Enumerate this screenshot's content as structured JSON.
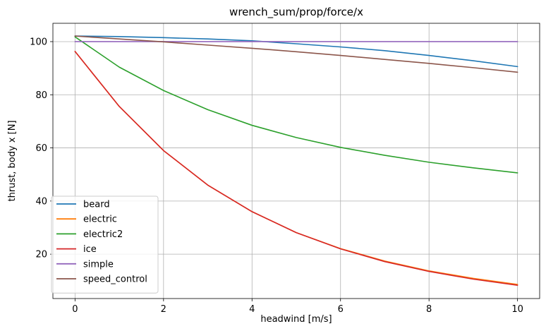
{
  "chart_data": {
    "type": "line",
    "title": "wrench_sum/prop/force/x",
    "xlabel": "headwind [m/s]",
    "ylabel": "thrust, body x [N]",
    "x": [
      0,
      1,
      2,
      3,
      4,
      5,
      6,
      7,
      8,
      9,
      10
    ],
    "xlim": [
      -0.5,
      10.5
    ],
    "ylim": [
      3.3,
      106.9
    ],
    "xticks": [
      0,
      2,
      4,
      6,
      8,
      10
    ],
    "yticks": [
      20,
      40,
      60,
      80,
      100
    ],
    "grid": true,
    "legend_position": "lower-left",
    "series": [
      {
        "name": "beard",
        "color": "#1f77b4",
        "values": [
          102.1,
          101.9,
          101.5,
          101.0,
          100.3,
          99.2,
          98.0,
          96.6,
          94.8,
          92.8,
          90.6
        ]
      },
      {
        "name": "electric",
        "color": "#ff7f0e",
        "values": [
          96.3,
          75.6,
          59.0,
          46.0,
          36.0,
          28.1,
          22.1,
          17.4,
          13.7,
          10.9,
          8.6
        ]
      },
      {
        "name": "electric2",
        "color": "#2ca02c",
        "values": [
          101.8,
          90.4,
          81.6,
          74.4,
          68.5,
          63.9,
          60.2,
          57.2,
          54.6,
          52.5,
          50.6
        ]
      },
      {
        "name": "ice",
        "color": "#d62728",
        "values": [
          96.3,
          75.6,
          59.0,
          46.0,
          36.0,
          28.1,
          22.0,
          17.2,
          13.5,
          10.6,
          8.3
        ]
      },
      {
        "name": "simple",
        "color": "#9467bd",
        "values": [
          100.0,
          100.0,
          100.0,
          100.0,
          100.0,
          100.0,
          100.0,
          100.0,
          100.0,
          100.0,
          100.0
        ]
      },
      {
        "name": "speed_control",
        "color": "#8c564b",
        "values": [
          102.1,
          101.0,
          99.9,
          98.7,
          97.5,
          96.2,
          94.8,
          93.3,
          91.8,
          90.2,
          88.5
        ]
      }
    ]
  }
}
